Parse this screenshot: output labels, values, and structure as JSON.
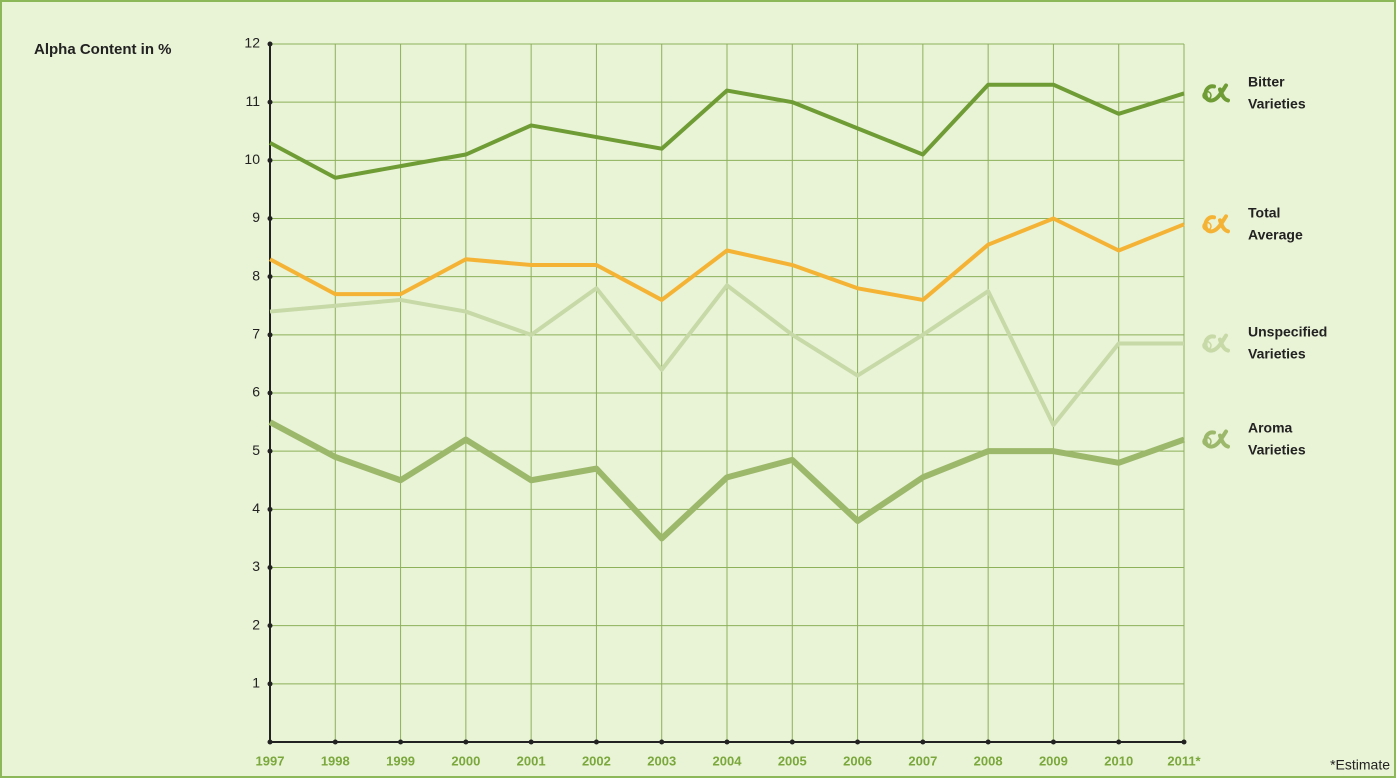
{
  "chart_data": {
    "type": "line",
    "y_label": "Alpha Content in %",
    "footnote": "*Estimate",
    "categories": [
      "1997",
      "1998",
      "1999",
      "2000",
      "2001",
      "2002",
      "2003",
      "2004",
      "2005",
      "2006",
      "2007",
      "2008",
      "2009",
      "2010",
      "2011*"
    ],
    "ylim": [
      0,
      12
    ],
    "yticks": [
      1,
      2,
      3,
      4,
      5,
      6,
      7,
      8,
      9,
      10,
      11,
      12
    ],
    "grid": true,
    "legend": "right",
    "series": [
      {
        "name": "Bitter Varieties",
        "color": "#6f9c35",
        "width": 4,
        "values": [
          10.3,
          9.7,
          9.9,
          10.1,
          10.6,
          10.4,
          10.2,
          11.2,
          11.0,
          10.55,
          10.1,
          11.3,
          11.3,
          10.8,
          11.15
        ]
      },
      {
        "name": "Total Average",
        "color": "#f5b335",
        "width": 4,
        "values": [
          8.3,
          7.7,
          7.7,
          8.3,
          8.2,
          8.2,
          7.6,
          8.45,
          8.2,
          7.8,
          7.6,
          8.55,
          9.0,
          8.45,
          8.9
        ]
      },
      {
        "name": "Unspecified Varieties",
        "color": "#c6d9a6",
        "width": 4,
        "values": [
          7.4,
          7.5,
          7.6,
          7.4,
          7.0,
          7.8,
          6.4,
          7.85,
          7.0,
          6.3,
          7.0,
          7.75,
          5.45,
          6.85,
          6.85
        ]
      },
      {
        "name": "Aroma Varieties",
        "color": "#9cb86a",
        "width": 6,
        "values": [
          5.5,
          4.9,
          4.5,
          5.2,
          4.5,
          4.7,
          3.5,
          4.55,
          4.85,
          3.8,
          4.55,
          5.0,
          5.0,
          4.8,
          5.2
        ]
      }
    ]
  }
}
